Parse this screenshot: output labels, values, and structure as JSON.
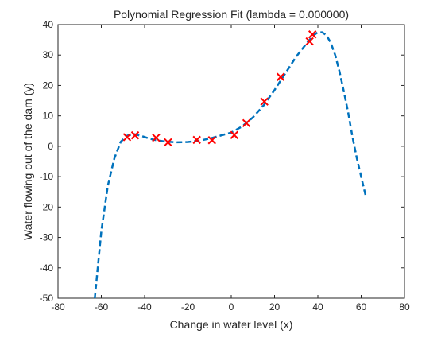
{
  "chart_data": {
    "type": "scatter",
    "title": "Polynomial Regression Fit (lambda = 0.000000)",
    "xlabel": "Change in water level (x)",
    "ylabel": "Water flowing out of the dam (y)",
    "xlim": [
      -80,
      80
    ],
    "ylim": [
      -50,
      40
    ],
    "xticks": [
      -80,
      -60,
      -40,
      -20,
      0,
      20,
      40,
      60,
      80
    ],
    "yticks": [
      -50,
      -40,
      -30,
      -20,
      -10,
      0,
      10,
      20,
      30,
      40
    ],
    "grid": false,
    "colors": {
      "points": "#ff0000",
      "fit": "#0072bd",
      "axes": "#262626"
    },
    "series": [
      {
        "kind": "points",
        "marker": "x",
        "x": [
          -48.1,
          -44.4,
          -34.7,
          -29.2,
          -15.9,
          -8.9,
          1.4,
          7.0,
          15.3,
          22.8,
          36.2,
          37.5
        ],
        "y": [
          3.0,
          3.6,
          2.8,
          1.3,
          2.1,
          2.0,
          3.7,
          7.6,
          14.7,
          22.8,
          34.5,
          36.8
        ]
      },
      {
        "kind": "line",
        "style": "dashed",
        "x": [
          -63,
          -60,
          -57,
          -54,
          -51,
          -48,
          -45,
          -42,
          -39,
          -36,
          -33,
          -30,
          -25,
          -20,
          -15,
          -10,
          -5,
          0,
          5,
          10,
          15,
          20,
          25,
          30,
          35,
          38,
          40,
          42,
          44,
          46,
          48,
          50,
          52,
          54,
          56,
          58,
          60,
          62
        ],
        "y": [
          -50,
          -28,
          -13,
          -4,
          1.5,
          3.5,
          4.0,
          3.5,
          2.8,
          2.2,
          1.8,
          1.5,
          1.3,
          1.4,
          1.8,
          2.5,
          3.5,
          4.5,
          6.5,
          9.5,
          13.5,
          18.5,
          24,
          29.5,
          34,
          36.5,
          37.5,
          37.5,
          36.5,
          34,
          30,
          24.5,
          18,
          11,
          3,
          -4,
          -10,
          -16
        ]
      }
    ]
  }
}
